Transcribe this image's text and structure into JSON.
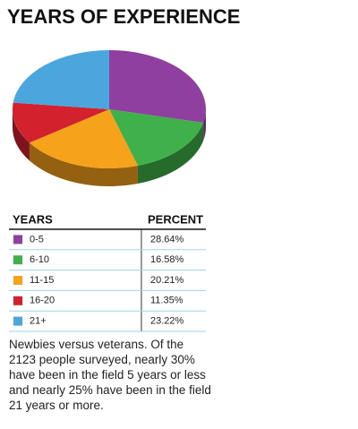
{
  "chart_data": {
    "type": "pie",
    "title": "YEARS OF EXPERIENCE",
    "categories": [
      "0-5",
      "6-10",
      "11-15",
      "16-20",
      "21+"
    ],
    "values": [
      28.64,
      16.58,
      20.21,
      11.35,
      23.22
    ],
    "value_labels": [
      "28.64%",
      "16.58%",
      "20.21%",
      "11.35%",
      "23.22%"
    ],
    "colors": [
      "#8e3fa0",
      "#3fb04a",
      "#f7a21b",
      "#d3222e",
      "#4aa6dd"
    ],
    "column_headers": [
      "YEARS",
      "PERCENT"
    ]
  },
  "caption": "Newbies versus veterans. Of the 2123 people surveyed, nearly 30% have been in the field 5 years or less and nearly 25% have been in the field 21 years or more."
}
